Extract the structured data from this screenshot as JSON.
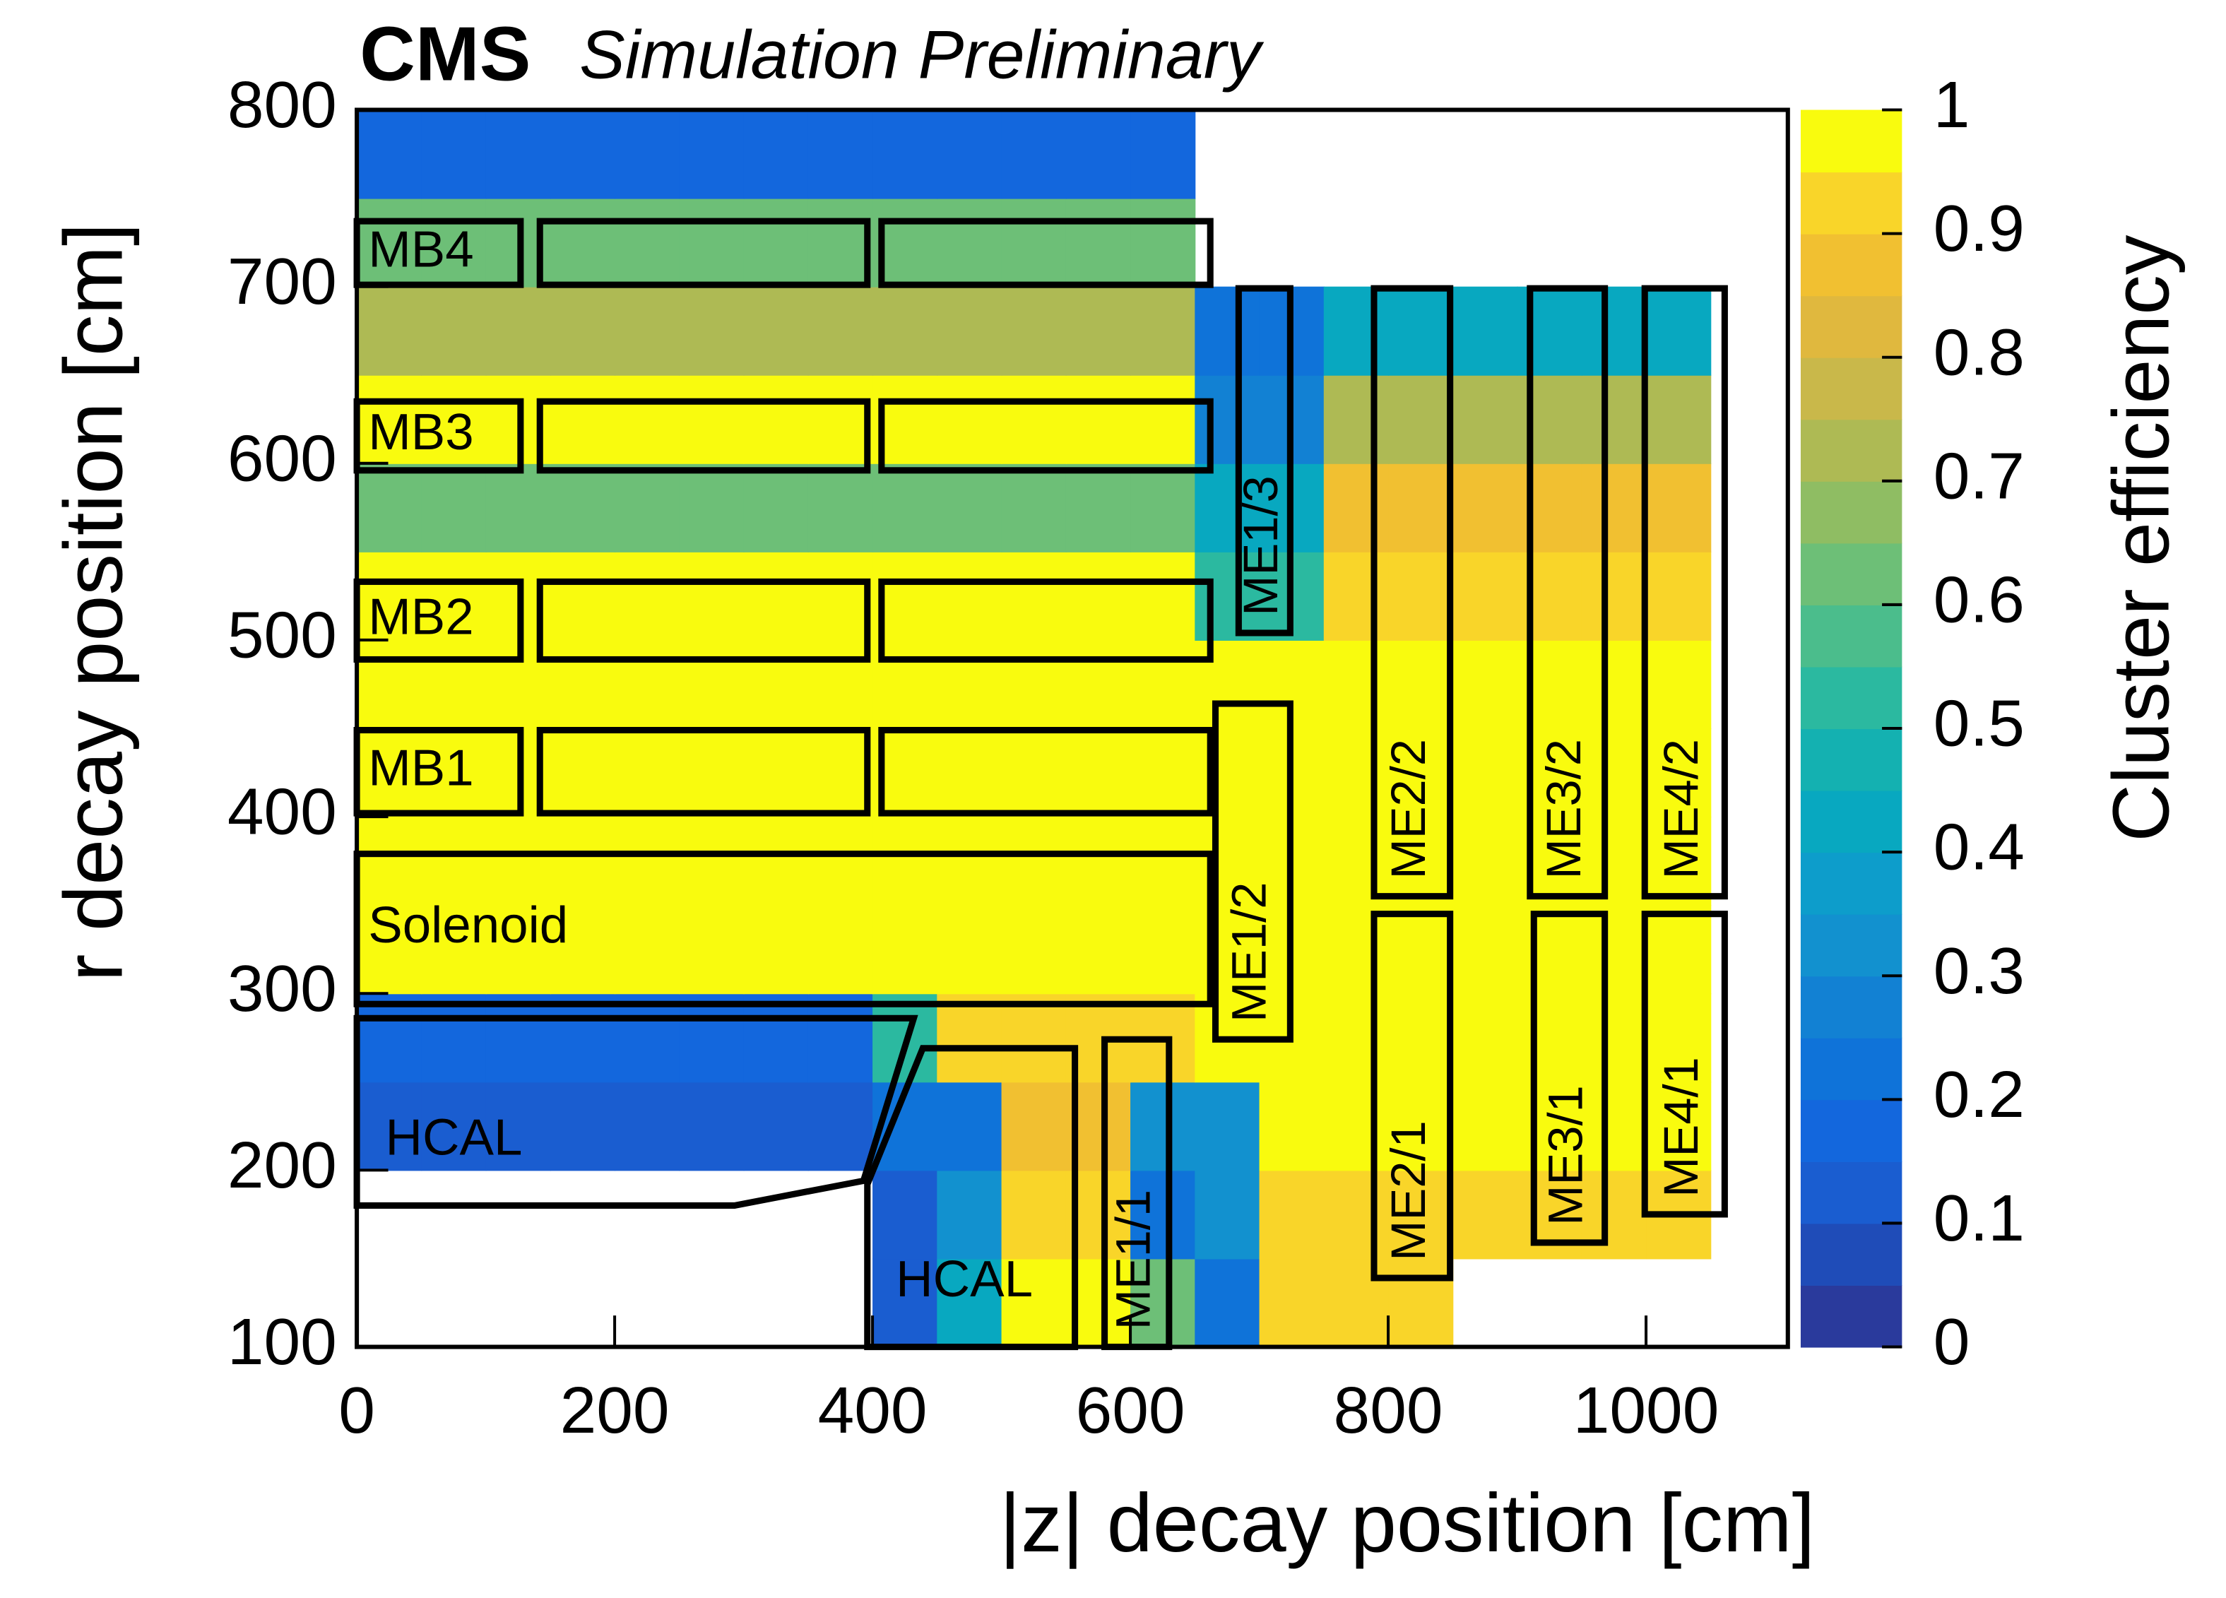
{
  "chart_data": {
    "type": "heatmap",
    "title": "CMS",
    "subtitle": "Simulation Preliminary",
    "x_label": "|z| decay position [cm]",
    "y_label": "r decay position [cm]",
    "colorbar_label": "Cluster efficiency",
    "xlim": [
      0,
      1110
    ],
    "ylim": [
      100,
      800
    ],
    "xticks": [
      0,
      200,
      400,
      600,
      800,
      1000
    ],
    "yticks": [
      100,
      200,
      300,
      400,
      500,
      600,
      700,
      800
    ],
    "clim": [
      0,
      1
    ],
    "cticks": [
      0,
      0.1,
      0.2,
      0.3,
      0.4,
      0.5,
      0.6,
      0.7,
      0.8,
      0.9,
      1
    ],
    "palette": [
      "#2a3a9c",
      "#1f4cb8",
      "#1a5dd0",
      "#1367dd",
      "#0f73d9",
      "#1281d3",
      "#1291cf",
      "#0d9dcb",
      "#08a8c0",
      "#14b1b1",
      "#2bb9a0",
      "#4bbd8c",
      "#6dbf77",
      "#8fbd63",
      "#aeba54",
      "#c9b84a",
      "#e0b83e",
      "#f1c031",
      "#f9d529",
      "#f9fb0e"
    ],
    "x_bins": [
      0,
      50,
      100,
      150,
      200,
      250,
      300,
      350,
      400,
      450,
      500,
      550,
      600,
      650,
      700,
      750,
      800,
      850,
      900,
      950,
      1000,
      1050,
      1100
    ],
    "y_bins": [
      100,
      150,
      200,
      250,
      300,
      350,
      400,
      450,
      500,
      550,
      600,
      650,
      700,
      750,
      800
    ],
    "values": [
      [
        null,
        null,
        null,
        null,
        null,
        null,
        null,
        null,
        0.1,
        0.4,
        0.95,
        0.95,
        0.6,
        0.2,
        0.9,
        0.9,
        0.9,
        null,
        null,
        null,
        null,
        null
      ],
      [
        null,
        null,
        null,
        null,
        null,
        null,
        null,
        null,
        0.1,
        0.3,
        0.9,
        0.9,
        0.2,
        0.3,
        0.9,
        0.9,
        0.9,
        0.9,
        0.9,
        0.9,
        0.9,
        null
      ],
      [
        0.1,
        0.1,
        0.1,
        0.1,
        0.1,
        0.1,
        0.1,
        0.1,
        0.2,
        0.2,
        0.85,
        0.85,
        0.3,
        0.3,
        0.95,
        0.95,
        0.95,
        0.95,
        0.95,
        0.95,
        0.95,
        null
      ],
      [
        0.15,
        0.15,
        0.15,
        0.15,
        0.15,
        0.15,
        0.15,
        0.15,
        0.5,
        0.9,
        0.9,
        0.9,
        0.9,
        0.95,
        0.95,
        0.95,
        0.95,
        0.95,
        0.95,
        0.95,
        0.95,
        null
      ],
      [
        0.97,
        0.97,
        0.97,
        0.97,
        0.97,
        0.97,
        0.97,
        0.97,
        0.97,
        0.97,
        0.97,
        0.97,
        0.97,
        0.97,
        0.97,
        0.97,
        0.97,
        0.97,
        0.97,
        0.97,
        0.97,
        null
      ],
      [
        0.98,
        0.98,
        0.98,
        0.98,
        0.98,
        0.98,
        0.98,
        0.98,
        0.98,
        0.98,
        0.98,
        0.98,
        0.98,
        0.98,
        0.98,
        0.98,
        0.98,
        0.98,
        0.98,
        0.98,
        0.98,
        null
      ],
      [
        0.98,
        0.98,
        0.98,
        0.98,
        0.98,
        0.98,
        0.98,
        0.98,
        0.98,
        0.98,
        0.98,
        0.98,
        0.98,
        0.98,
        0.98,
        0.98,
        0.98,
        0.98,
        0.98,
        0.98,
        0.98,
        null
      ],
      [
        0.95,
        0.95,
        0.95,
        0.95,
        0.95,
        0.95,
        0.95,
        0.95,
        0.95,
        0.95,
        0.95,
        0.95,
        0.95,
        0.95,
        0.95,
        0.95,
        0.95,
        0.95,
        0.95,
        0.95,
        0.95,
        null
      ],
      [
        0.95,
        0.95,
        0.95,
        0.95,
        0.95,
        0.95,
        0.95,
        0.95,
        0.95,
        0.95,
        0.95,
        0.95,
        0.95,
        0.5,
        0.5,
        0.9,
        0.9,
        0.9,
        0.9,
        0.9,
        0.9,
        null
      ],
      [
        0.6,
        0.6,
        0.6,
        0.6,
        0.6,
        0.6,
        0.6,
        0.6,
        0.6,
        0.6,
        0.6,
        0.6,
        0.6,
        0.4,
        0.4,
        0.85,
        0.85,
        0.85,
        0.85,
        0.85,
        0.85,
        null
      ],
      [
        0.95,
        0.95,
        0.95,
        0.95,
        0.95,
        0.95,
        0.95,
        0.95,
        0.95,
        0.95,
        0.95,
        0.95,
        0.95,
        0.25,
        0.25,
        0.7,
        0.7,
        0.7,
        0.7,
        0.7,
        0.7,
        null
      ],
      [
        0.7,
        0.7,
        0.7,
        0.7,
        0.7,
        0.7,
        0.7,
        0.7,
        0.7,
        0.7,
        0.7,
        0.7,
        0.7,
        0.2,
        0.2,
        0.4,
        0.4,
        0.4,
        0.4,
        0.4,
        0.4,
        null
      ],
      [
        0.6,
        0.6,
        0.6,
        0.6,
        0.6,
        0.6,
        0.6,
        0.6,
        0.6,
        0.6,
        0.6,
        0.6,
        0.6,
        null,
        null,
        null,
        null,
        null,
        null,
        null,
        null,
        null
      ],
      [
        0.15,
        0.15,
        0.15,
        0.15,
        0.15,
        0.15,
        0.15,
        0.15,
        0.15,
        0.15,
        0.15,
        0.15,
        0.15,
        null,
        null,
        null,
        null,
        null,
        null,
        null,
        null,
        null
      ]
    ],
    "regions": [
      {
        "label": "MB4",
        "z": [
          0,
          127
        ],
        "r": [
          701,
          737
        ]
      },
      {
        "z": [
          142,
          396
        ],
        "r": [
          701,
          737
        ]
      },
      {
        "z": [
          407,
          662
        ],
        "r": [
          701,
          737
        ]
      },
      {
        "label": "MB3",
        "z": [
          0,
          127
        ],
        "r": [
          596,
          635
        ]
      },
      {
        "z": [
          142,
          396
        ],
        "r": [
          596,
          635
        ]
      },
      {
        "z": [
          407,
          662
        ],
        "r": [
          596,
          635
        ]
      },
      {
        "label": "MB2",
        "z": [
          0,
          127
        ],
        "r": [
          489,
          533
        ]
      },
      {
        "z": [
          142,
          396
        ],
        "r": [
          489,
          533
        ]
      },
      {
        "z": [
          407,
          662
        ],
        "r": [
          489,
          533
        ]
      },
      {
        "label": "MB1",
        "z": [
          0,
          127
        ],
        "r": [
          402,
          449
        ]
      },
      {
        "z": [
          142,
          396
        ],
        "r": [
          402,
          449
        ]
      },
      {
        "z": [
          407,
          662
        ],
        "r": [
          402,
          449
        ]
      },
      {
        "label": "Solenoid",
        "z": [
          0,
          662
        ],
        "r": [
          294,
          379
        ]
      },
      {
        "label": "HCAL",
        "points": [
          [
            0,
            286
          ],
          [
            432,
            286
          ],
          [
            393,
            194
          ],
          [
            293,
            180
          ],
          [
            0,
            180
          ]
        ]
      },
      {
        "label": "HCAL",
        "points": [
          [
            396,
            100
          ],
          [
            396,
            192
          ],
          [
            439,
            269
          ],
          [
            557,
            269
          ],
          [
            557,
            100
          ]
        ]
      },
      {
        "label": "ME1/1",
        "z": [
          580,
          630
        ],
        "r": [
          100,
          274
        ]
      },
      {
        "label": "ME1/2",
        "z": [
          666,
          724
        ],
        "r": [
          274,
          464
        ]
      },
      {
        "label": "ME1/3",
        "z": [
          684,
          724
        ],
        "r": [
          504,
          699
        ]
      },
      {
        "label": "ME2/1",
        "z": [
          789,
          848
        ],
        "r": [
          139,
          345
        ]
      },
      {
        "label": "ME2/2",
        "z": [
          789,
          848
        ],
        "r": [
          355,
          699
        ]
      },
      {
        "label": "ME3/1",
        "z": [
          913,
          968
        ],
        "r": [
          159,
          345
        ]
      },
      {
        "label": "ME3/2",
        "z": [
          910,
          968
        ],
        "r": [
          355,
          699
        ]
      },
      {
        "label": "ME4/1",
        "z": [
          999,
          1061
        ],
        "r": [
          175,
          345
        ]
      },
      {
        "label": "ME4/2",
        "z": [
          999,
          1061
        ],
        "r": [
          355,
          699
        ]
      }
    ]
  }
}
